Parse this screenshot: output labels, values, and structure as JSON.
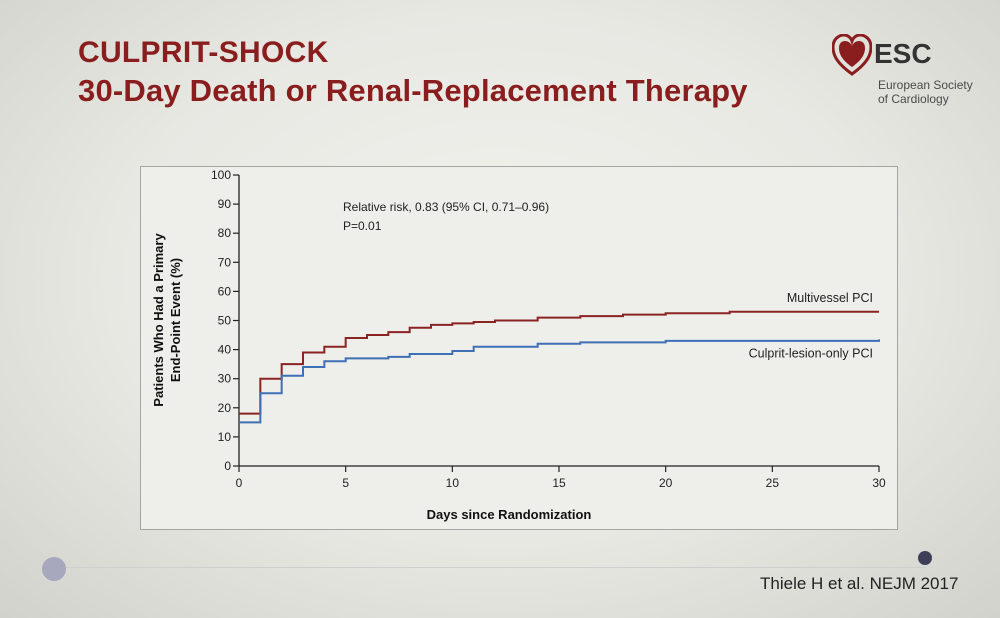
{
  "slide": {
    "title_line1": "CULPRIT-SHOCK",
    "title_line2": "30-Day Death or Renal-Replacement Therapy",
    "citation": "Thiele H et al. NEJM 2017"
  },
  "logo": {
    "abbr": "ESC",
    "line1": "European Society",
    "line2": "of Cardiology",
    "brand_color": "#8a1d1d"
  },
  "chart_data": {
    "type": "line",
    "step": true,
    "xlabel": "Days since Randomization",
    "ylabel_line1": "Patients Who Had a Primary",
    "ylabel_line2": "End-Point Event (%)",
    "xlim": [
      0,
      30
    ],
    "ylim": [
      0,
      100
    ],
    "x_ticks": [
      0,
      5,
      10,
      15,
      20,
      25,
      30
    ],
    "y_ticks": [
      0,
      10,
      20,
      30,
      40,
      50,
      60,
      70,
      80,
      90,
      100
    ],
    "grid": false,
    "annotations": [
      "Relative risk, 0.83 (95% CI, 0.71–0.96)",
      "P=0.01"
    ],
    "series": [
      {
        "name": "Multivessel PCI",
        "color": "#8b2323",
        "x": [
          0,
          1,
          2,
          3,
          4,
          5,
          6,
          7,
          8,
          9,
          10,
          11,
          12,
          14,
          16,
          18,
          20,
          23,
          30
        ],
        "y": [
          18,
          30,
          35,
          39,
          41,
          44,
          45,
          46,
          47.5,
          48.5,
          49,
          49.5,
          50,
          51,
          51.5,
          52,
          52.5,
          53,
          53
        ]
      },
      {
        "name": "Culprit-lesion-only PCI",
        "color": "#3f6fb5",
        "x": [
          0,
          1,
          2,
          3,
          4,
          5,
          7,
          8,
          10,
          11,
          14,
          16,
          20,
          30
        ],
        "y": [
          15,
          25,
          31,
          34,
          36,
          37,
          37.5,
          38.5,
          39.5,
          41,
          42,
          42.5,
          43,
          43.5
        ]
      }
    ]
  }
}
